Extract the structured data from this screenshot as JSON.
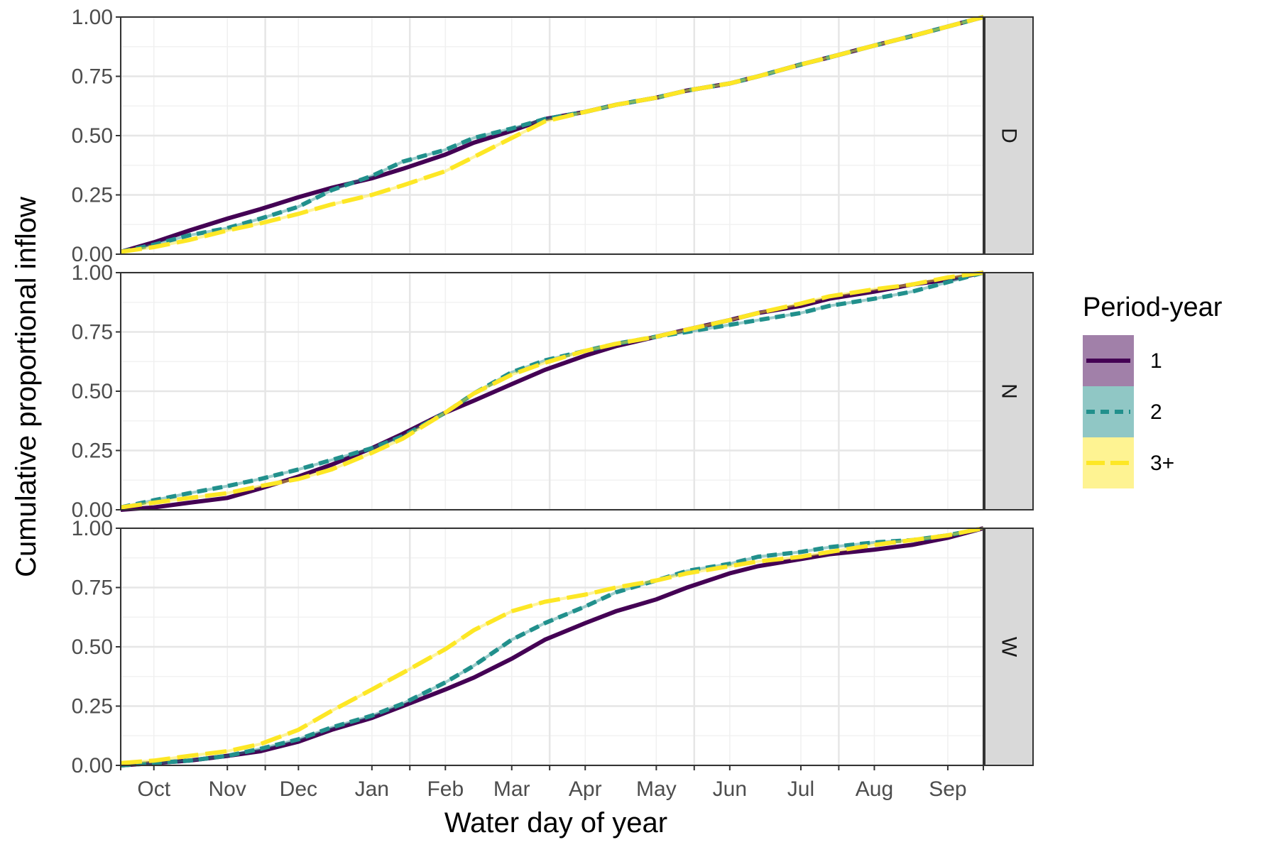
{
  "chart_data": {
    "type": "line",
    "xlabel": "Water day of year",
    "ylabel": "Cumulative proportional inflow",
    "xlim": [
      1,
      365
    ],
    "ylim": [
      0,
      1
    ],
    "x_ticks": [
      {
        "label": "Oct",
        "pos": 15
      },
      {
        "label": "Nov",
        "pos": 46
      },
      {
        "label": "Dec",
        "pos": 76
      },
      {
        "label": "Jan",
        "pos": 107
      },
      {
        "label": "Feb",
        "pos": 138
      },
      {
        "label": "Mar",
        "pos": 166
      },
      {
        "label": "Apr",
        "pos": 197
      },
      {
        "label": "May",
        "pos": 227
      },
      {
        "label": "Jun",
        "pos": 258
      },
      {
        "label": "Jul",
        "pos": 288
      },
      {
        "label": "Aug",
        "pos": 319
      },
      {
        "label": "Sep",
        "pos": 350
      }
    ],
    "x_major_breaks": [
      1,
      62,
      123,
      182,
      243,
      304,
      365
    ],
    "y_ticks": [
      "0.00",
      "0.25",
      "0.50",
      "0.75",
      "1.00"
    ],
    "y_tick_values": [
      0,
      0.25,
      0.5,
      0.75,
      1.0
    ],
    "legend": {
      "title": "Period-year",
      "entries": [
        {
          "label": "1",
          "color": "#440154",
          "dash": "solid"
        },
        {
          "label": "2",
          "color": "#21908C",
          "dash": "dashed"
        },
        {
          "label": "3+",
          "color": "#FDE725",
          "dash": "longdash"
        }
      ]
    },
    "panels": [
      {
        "strip": "D",
        "series": [
          {
            "name": "1",
            "x": [
              1,
              15,
              30,
              46,
              60,
              76,
              90,
              107,
              120,
              138,
              150,
              166,
              180,
              197,
              210,
              227,
              240,
              258,
              270,
              288,
              300,
              319,
              335,
              350,
              365
            ],
            "y": [
              0.01,
              0.05,
              0.1,
              0.15,
              0.19,
              0.24,
              0.28,
              0.32,
              0.36,
              0.42,
              0.47,
              0.52,
              0.57,
              0.6,
              0.63,
              0.66,
              0.69,
              0.72,
              0.75,
              0.8,
              0.83,
              0.88,
              0.92,
              0.96,
              1.0
            ]
          },
          {
            "name": "2",
            "x": [
              1,
              15,
              30,
              46,
              60,
              76,
              90,
              107,
              120,
              138,
              150,
              166,
              180,
              197,
              210,
              227,
              240,
              258,
              270,
              288,
              300,
              319,
              335,
              350,
              365
            ],
            "y": [
              0.01,
              0.04,
              0.08,
              0.11,
              0.15,
              0.2,
              0.27,
              0.33,
              0.39,
              0.44,
              0.49,
              0.53,
              0.57,
              0.6,
              0.63,
              0.66,
              0.69,
              0.72,
              0.75,
              0.8,
              0.83,
              0.88,
              0.92,
              0.96,
              1.0
            ]
          },
          {
            "name": "3+",
            "x": [
              1,
              15,
              30,
              46,
              60,
              76,
              90,
              107,
              120,
              138,
              150,
              166,
              180,
              197,
              210,
              227,
              240,
              258,
              270,
              288,
              300,
              319,
              335,
              350,
              365
            ],
            "y": [
              0.01,
              0.03,
              0.06,
              0.1,
              0.13,
              0.17,
              0.21,
              0.25,
              0.29,
              0.35,
              0.41,
              0.49,
              0.56,
              0.6,
              0.63,
              0.66,
              0.69,
              0.72,
              0.75,
              0.8,
              0.83,
              0.88,
              0.92,
              0.96,
              1.0
            ]
          }
        ]
      },
      {
        "strip": "N",
        "series": [
          {
            "name": "1",
            "x": [
              1,
              15,
              30,
              46,
              60,
              76,
              90,
              107,
              120,
              138,
              150,
              166,
              180,
              197,
              210,
              227,
              240,
              258,
              270,
              288,
              300,
              319,
              335,
              350,
              365
            ],
            "y": [
              0.0,
              0.01,
              0.03,
              0.05,
              0.09,
              0.14,
              0.19,
              0.26,
              0.32,
              0.41,
              0.46,
              0.53,
              0.59,
              0.65,
              0.69,
              0.73,
              0.76,
              0.8,
              0.83,
              0.86,
              0.89,
              0.92,
              0.95,
              0.97,
              1.0
            ]
          },
          {
            "name": "2",
            "x": [
              1,
              15,
              30,
              46,
              60,
              76,
              90,
              107,
              120,
              138,
              150,
              166,
              180,
              197,
              210,
              227,
              240,
              258,
              270,
              288,
              300,
              319,
              335,
              350,
              365
            ],
            "y": [
              0.01,
              0.04,
              0.07,
              0.1,
              0.13,
              0.17,
              0.21,
              0.26,
              0.31,
              0.41,
              0.49,
              0.58,
              0.63,
              0.67,
              0.7,
              0.73,
              0.75,
              0.78,
              0.8,
              0.83,
              0.86,
              0.89,
              0.92,
              0.96,
              1.0
            ]
          },
          {
            "name": "3+",
            "x": [
              1,
              15,
              30,
              46,
              60,
              76,
              90,
              107,
              120,
              138,
              150,
              166,
              180,
              197,
              210,
              227,
              240,
              258,
              270,
              288,
              300,
              319,
              335,
              350,
              365
            ],
            "y": [
              0.01,
              0.03,
              0.05,
              0.07,
              0.1,
              0.13,
              0.17,
              0.24,
              0.3,
              0.41,
              0.49,
              0.57,
              0.62,
              0.67,
              0.7,
              0.73,
              0.76,
              0.8,
              0.83,
              0.87,
              0.9,
              0.93,
              0.95,
              0.98,
              1.0
            ]
          }
        ]
      },
      {
        "strip": "W",
        "series": [
          {
            "name": "1",
            "x": [
              1,
              15,
              30,
              46,
              60,
              76,
              90,
              107,
              120,
              138,
              150,
              166,
              180,
              197,
              210,
              227,
              240,
              258,
              270,
              288,
              300,
              319,
              335,
              350,
              365
            ],
            "y": [
              0.0,
              0.01,
              0.02,
              0.04,
              0.06,
              0.1,
              0.15,
              0.2,
              0.25,
              0.32,
              0.37,
              0.45,
              0.53,
              0.6,
              0.65,
              0.7,
              0.75,
              0.81,
              0.84,
              0.87,
              0.89,
              0.91,
              0.93,
              0.96,
              1.0
            ]
          },
          {
            "name": "2",
            "x": [
              1,
              15,
              30,
              46,
              60,
              76,
              90,
              107,
              120,
              138,
              150,
              166,
              180,
              197,
              210,
              227,
              240,
              258,
              270,
              288,
              300,
              319,
              335,
              350,
              365
            ],
            "y": [
              0.0,
              0.01,
              0.02,
              0.04,
              0.07,
              0.11,
              0.16,
              0.21,
              0.26,
              0.35,
              0.42,
              0.53,
              0.6,
              0.67,
              0.73,
              0.78,
              0.82,
              0.85,
              0.88,
              0.9,
              0.92,
              0.94,
              0.95,
              0.97,
              1.0
            ]
          },
          {
            "name": "3+",
            "x": [
              1,
              15,
              30,
              46,
              60,
              76,
              90,
              107,
              120,
              138,
              150,
              166,
              180,
              197,
              210,
              227,
              240,
              258,
              270,
              288,
              300,
              319,
              335,
              350,
              365
            ],
            "y": [
              0.01,
              0.02,
              0.04,
              0.06,
              0.09,
              0.15,
              0.23,
              0.32,
              0.39,
              0.49,
              0.57,
              0.65,
              0.69,
              0.72,
              0.75,
              0.78,
              0.81,
              0.84,
              0.86,
              0.88,
              0.9,
              0.93,
              0.95,
              0.97,
              1.0
            ]
          }
        ]
      }
    ]
  }
}
